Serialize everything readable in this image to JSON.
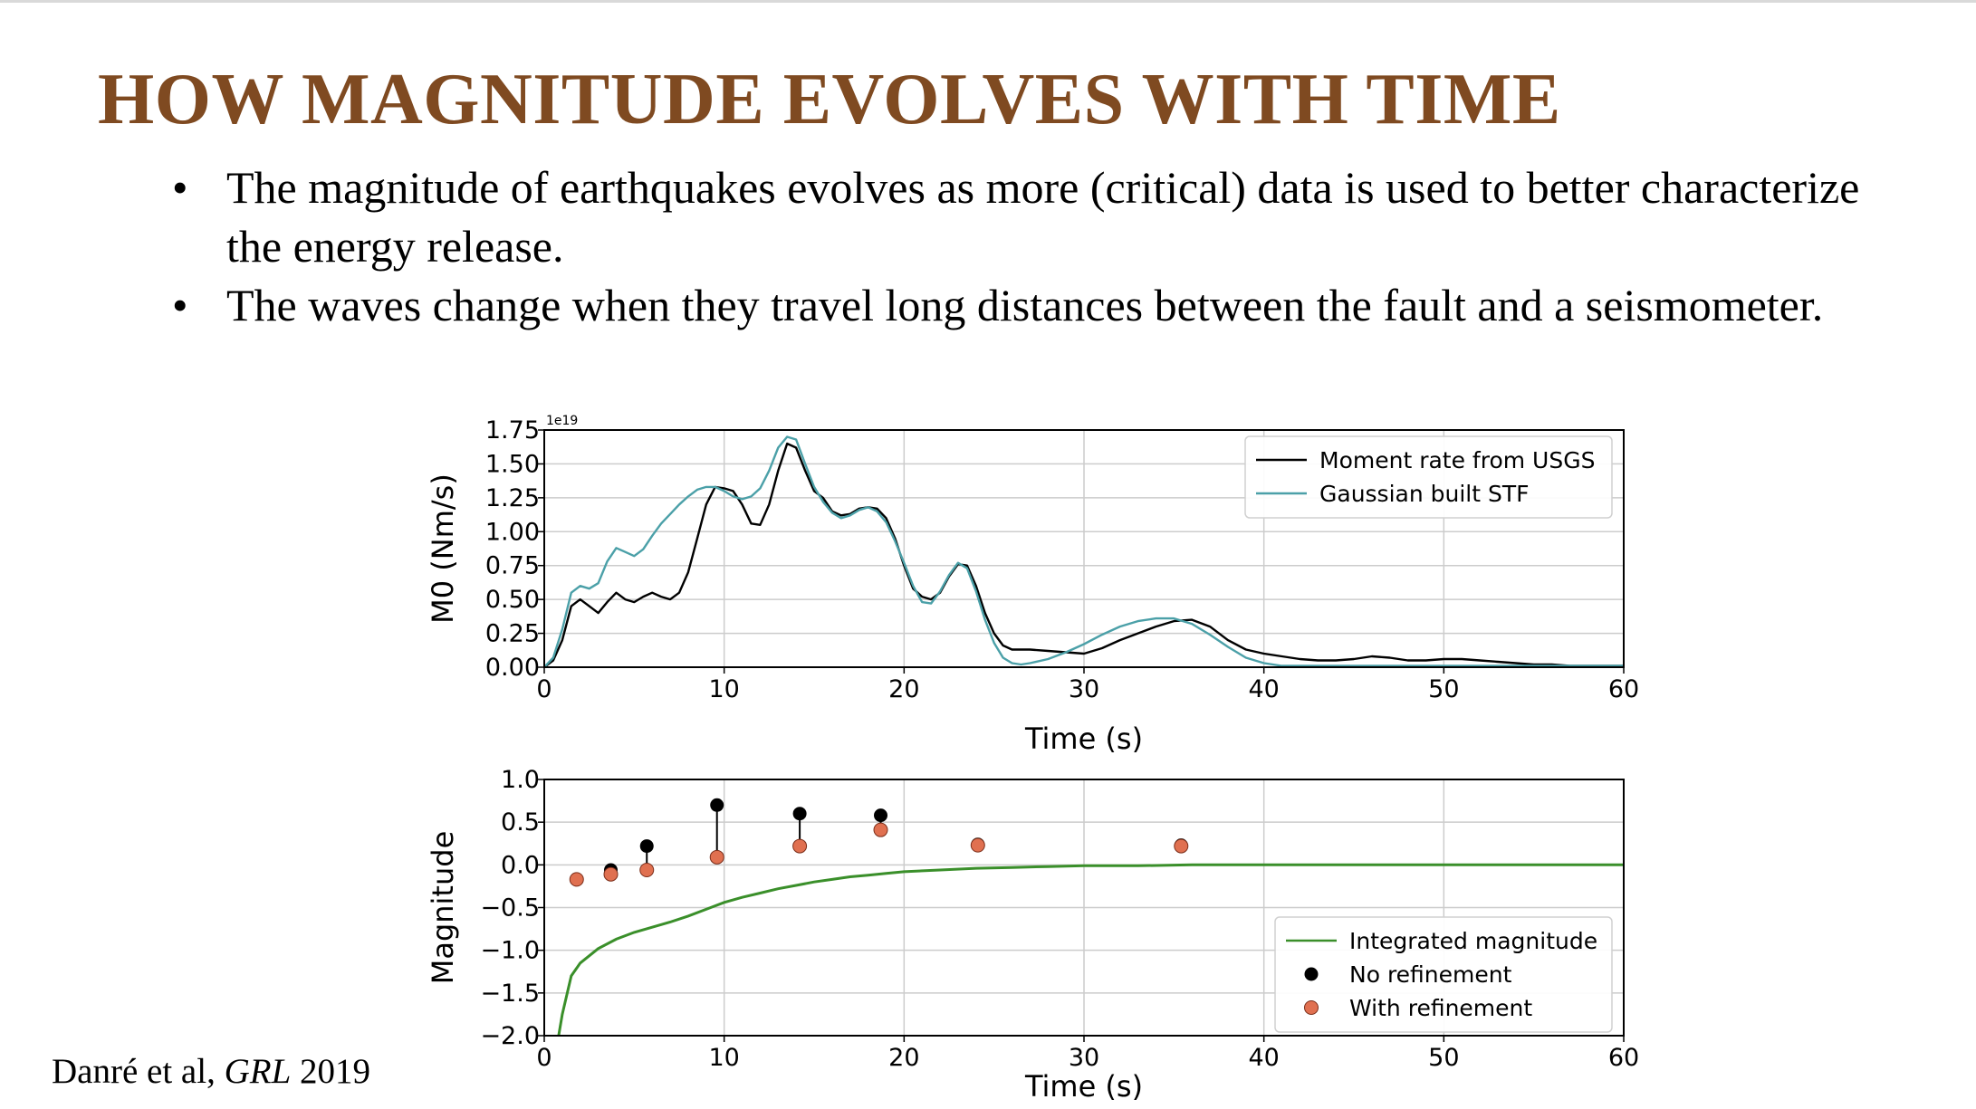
{
  "slide": {
    "title": "HOW MAGNITUDE EVOLVES WITH TIME",
    "bullets": [
      "The magnitude of earthquakes evolves as more (critical) data is used to better characterize the energy release.",
      "The waves change when they travel long distances between the fault and a seismometer."
    ],
    "bullet_symbol": "•",
    "citation": {
      "authors": "Danré et al, ",
      "journal": "GRL",
      "year": " 2019"
    }
  },
  "chart_data": [
    {
      "type": "line",
      "xlabel": "Time (s)",
      "ylabel": "M0 (Nm/s)",
      "offset_label": "1e19",
      "xlim": [
        0,
        60
      ],
      "ylim": [
        0,
        1.75
      ],
      "xticks": [
        "0",
        "10",
        "20",
        "30",
        "40",
        "50",
        "60"
      ],
      "yticks": [
        "0.00",
        "0.25",
        "0.50",
        "0.75",
        "1.00",
        "1.25",
        "1.50",
        "1.75"
      ],
      "grid": true,
      "legend": "top-right",
      "series": [
        {
          "name": "Moment rate from USGS",
          "color": "#000000",
          "x": [
            0,
            0.5,
            1,
            1.5,
            2,
            2.5,
            3,
            3.5,
            4,
            4.5,
            5,
            5.5,
            6,
            6.5,
            7,
            7.5,
            8,
            8.5,
            9,
            9.5,
            10,
            10.5,
            11,
            11.5,
            12,
            12.5,
            13,
            13.5,
            14,
            14.5,
            15,
            15.5,
            16,
            16.5,
            17,
            17.5,
            18,
            18.5,
            19,
            19.5,
            20,
            20.5,
            21,
            21.5,
            22,
            22.5,
            23,
            23.5,
            24,
            24.5,
            25,
            25.5,
            26,
            26.5,
            27,
            28,
            29,
            30,
            31,
            32,
            33,
            34,
            35,
            36,
            37,
            38,
            39,
            40,
            41,
            42,
            43,
            44,
            45,
            46,
            47,
            48,
            49,
            50,
            51,
            52,
            53,
            54,
            55,
            56,
            57,
            58,
            59,
            60
          ],
          "values": [
            0,
            0.05,
            0.2,
            0.45,
            0.5,
            0.45,
            0.4,
            0.48,
            0.55,
            0.5,
            0.48,
            0.52,
            0.55,
            0.52,
            0.5,
            0.55,
            0.7,
            0.95,
            1.2,
            1.33,
            1.32,
            1.3,
            1.2,
            1.06,
            1.05,
            1.2,
            1.45,
            1.65,
            1.62,
            1.45,
            1.3,
            1.25,
            1.15,
            1.12,
            1.13,
            1.17,
            1.18,
            1.17,
            1.1,
            0.95,
            0.75,
            0.58,
            0.52,
            0.5,
            0.55,
            0.67,
            0.76,
            0.75,
            0.6,
            0.4,
            0.25,
            0.16,
            0.13,
            0.13,
            0.13,
            0.12,
            0.11,
            0.1,
            0.14,
            0.2,
            0.25,
            0.3,
            0.34,
            0.35,
            0.3,
            0.2,
            0.13,
            0.1,
            0.08,
            0.06,
            0.05,
            0.05,
            0.06,
            0.08,
            0.07,
            0.05,
            0.05,
            0.06,
            0.06,
            0.05,
            0.04,
            0.03,
            0.02,
            0.02,
            0.01,
            0.01,
            0.01,
            0.01
          ]
        },
        {
          "name": "Gaussian built STF",
          "color": "#4ba0a8",
          "x": [
            0,
            0.5,
            1,
            1.5,
            2,
            2.5,
            3,
            3.5,
            4,
            4.5,
            5,
            5.5,
            6,
            6.5,
            7,
            7.5,
            8,
            8.5,
            9,
            9.5,
            10,
            10.5,
            11,
            11.5,
            12,
            12.5,
            13,
            13.5,
            14,
            14.5,
            15,
            15.5,
            16,
            16.5,
            17,
            17.5,
            18,
            18.5,
            19,
            19.5,
            20,
            20.5,
            21,
            21.5,
            22,
            22.5,
            23,
            23.5,
            24,
            24.5,
            25,
            25.5,
            26,
            26.5,
            27,
            28,
            29,
            30,
            31,
            32,
            33,
            34,
            35,
            36,
            37,
            38,
            39,
            40,
            41,
            42,
            43,
            44,
            45,
            46,
            47,
            48,
            49,
            50,
            51,
            52,
            53,
            54,
            55,
            56,
            57,
            58,
            59,
            60
          ],
          "values": [
            0,
            0.07,
            0.28,
            0.55,
            0.6,
            0.58,
            0.62,
            0.78,
            0.88,
            0.85,
            0.82,
            0.87,
            0.97,
            1.06,
            1.13,
            1.2,
            1.26,
            1.31,
            1.33,
            1.33,
            1.3,
            1.26,
            1.24,
            1.26,
            1.32,
            1.45,
            1.62,
            1.7,
            1.68,
            1.5,
            1.33,
            1.22,
            1.14,
            1.1,
            1.12,
            1.16,
            1.18,
            1.15,
            1.07,
            0.93,
            0.77,
            0.6,
            0.48,
            0.47,
            0.56,
            0.68,
            0.77,
            0.73,
            0.56,
            0.35,
            0.18,
            0.07,
            0.03,
            0.02,
            0.03,
            0.06,
            0.11,
            0.17,
            0.24,
            0.3,
            0.34,
            0.36,
            0.36,
            0.32,
            0.24,
            0.15,
            0.07,
            0.03,
            0.01,
            0.01,
            0.01,
            0.01,
            0.01,
            0.01,
            0.01,
            0.01,
            0.01,
            0.01,
            0.01,
            0.01,
            0.01,
            0.01,
            0.01,
            0.01,
            0.01,
            0.01,
            0.01,
            0.01
          ]
        }
      ]
    },
    {
      "type": "scatter",
      "xlabel": "Time (s)",
      "ylabel": "Magnitude",
      "xlim": [
        0,
        60
      ],
      "ylim": [
        -2.0,
        1.0
      ],
      "xticks": [
        "0",
        "10",
        "20",
        "30",
        "40",
        "50",
        "60"
      ],
      "yticks": [
        "−2.0",
        "−1.5",
        "−1.0",
        "−0.5",
        "0.0",
        "0.5",
        "1.0"
      ],
      "grid": true,
      "legend": "bottom-right",
      "series": [
        {
          "name": "Integrated magnitude",
          "type": "line",
          "color": "#3a8f2a",
          "x": [
            0.8,
            1,
            1.5,
            2,
            3,
            4,
            5,
            6,
            7,
            8,
            9,
            10,
            11,
            12,
            13,
            14,
            15,
            16,
            17,
            18,
            19,
            20,
            22,
            24,
            26,
            28,
            30,
            33,
            36,
            40,
            45,
            50,
            55,
            60
          ],
          "values": [
            -2.0,
            -1.75,
            -1.3,
            -1.15,
            -0.98,
            -0.87,
            -0.79,
            -0.73,
            -0.67,
            -0.6,
            -0.52,
            -0.44,
            -0.38,
            -0.33,
            -0.28,
            -0.24,
            -0.2,
            -0.17,
            -0.14,
            -0.12,
            -0.1,
            -0.08,
            -0.06,
            -0.04,
            -0.03,
            -0.02,
            -0.01,
            -0.01,
            0.0,
            0.0,
            0.0,
            0.0,
            0.0,
            0.0
          ]
        },
        {
          "name": "No refinement",
          "type": "scatter",
          "color": "#000000",
          "x": [
            1.8,
            3.7,
            5.7,
            9.6,
            14.2,
            18.7,
            24.1,
            35.4
          ],
          "values": [
            -0.17,
            -0.06,
            0.22,
            0.7,
            0.6,
            0.58,
            0.24,
            0.23
          ]
        },
        {
          "name": "With refinement",
          "type": "scatter",
          "color": "#e07050",
          "x": [
            1.8,
            3.7,
            5.7,
            9.6,
            14.2,
            18.7,
            24.1,
            35.4
          ],
          "values": [
            -0.17,
            -0.11,
            -0.06,
            0.09,
            0.22,
            0.41,
            0.23,
            0.22
          ]
        }
      ]
    }
  ]
}
